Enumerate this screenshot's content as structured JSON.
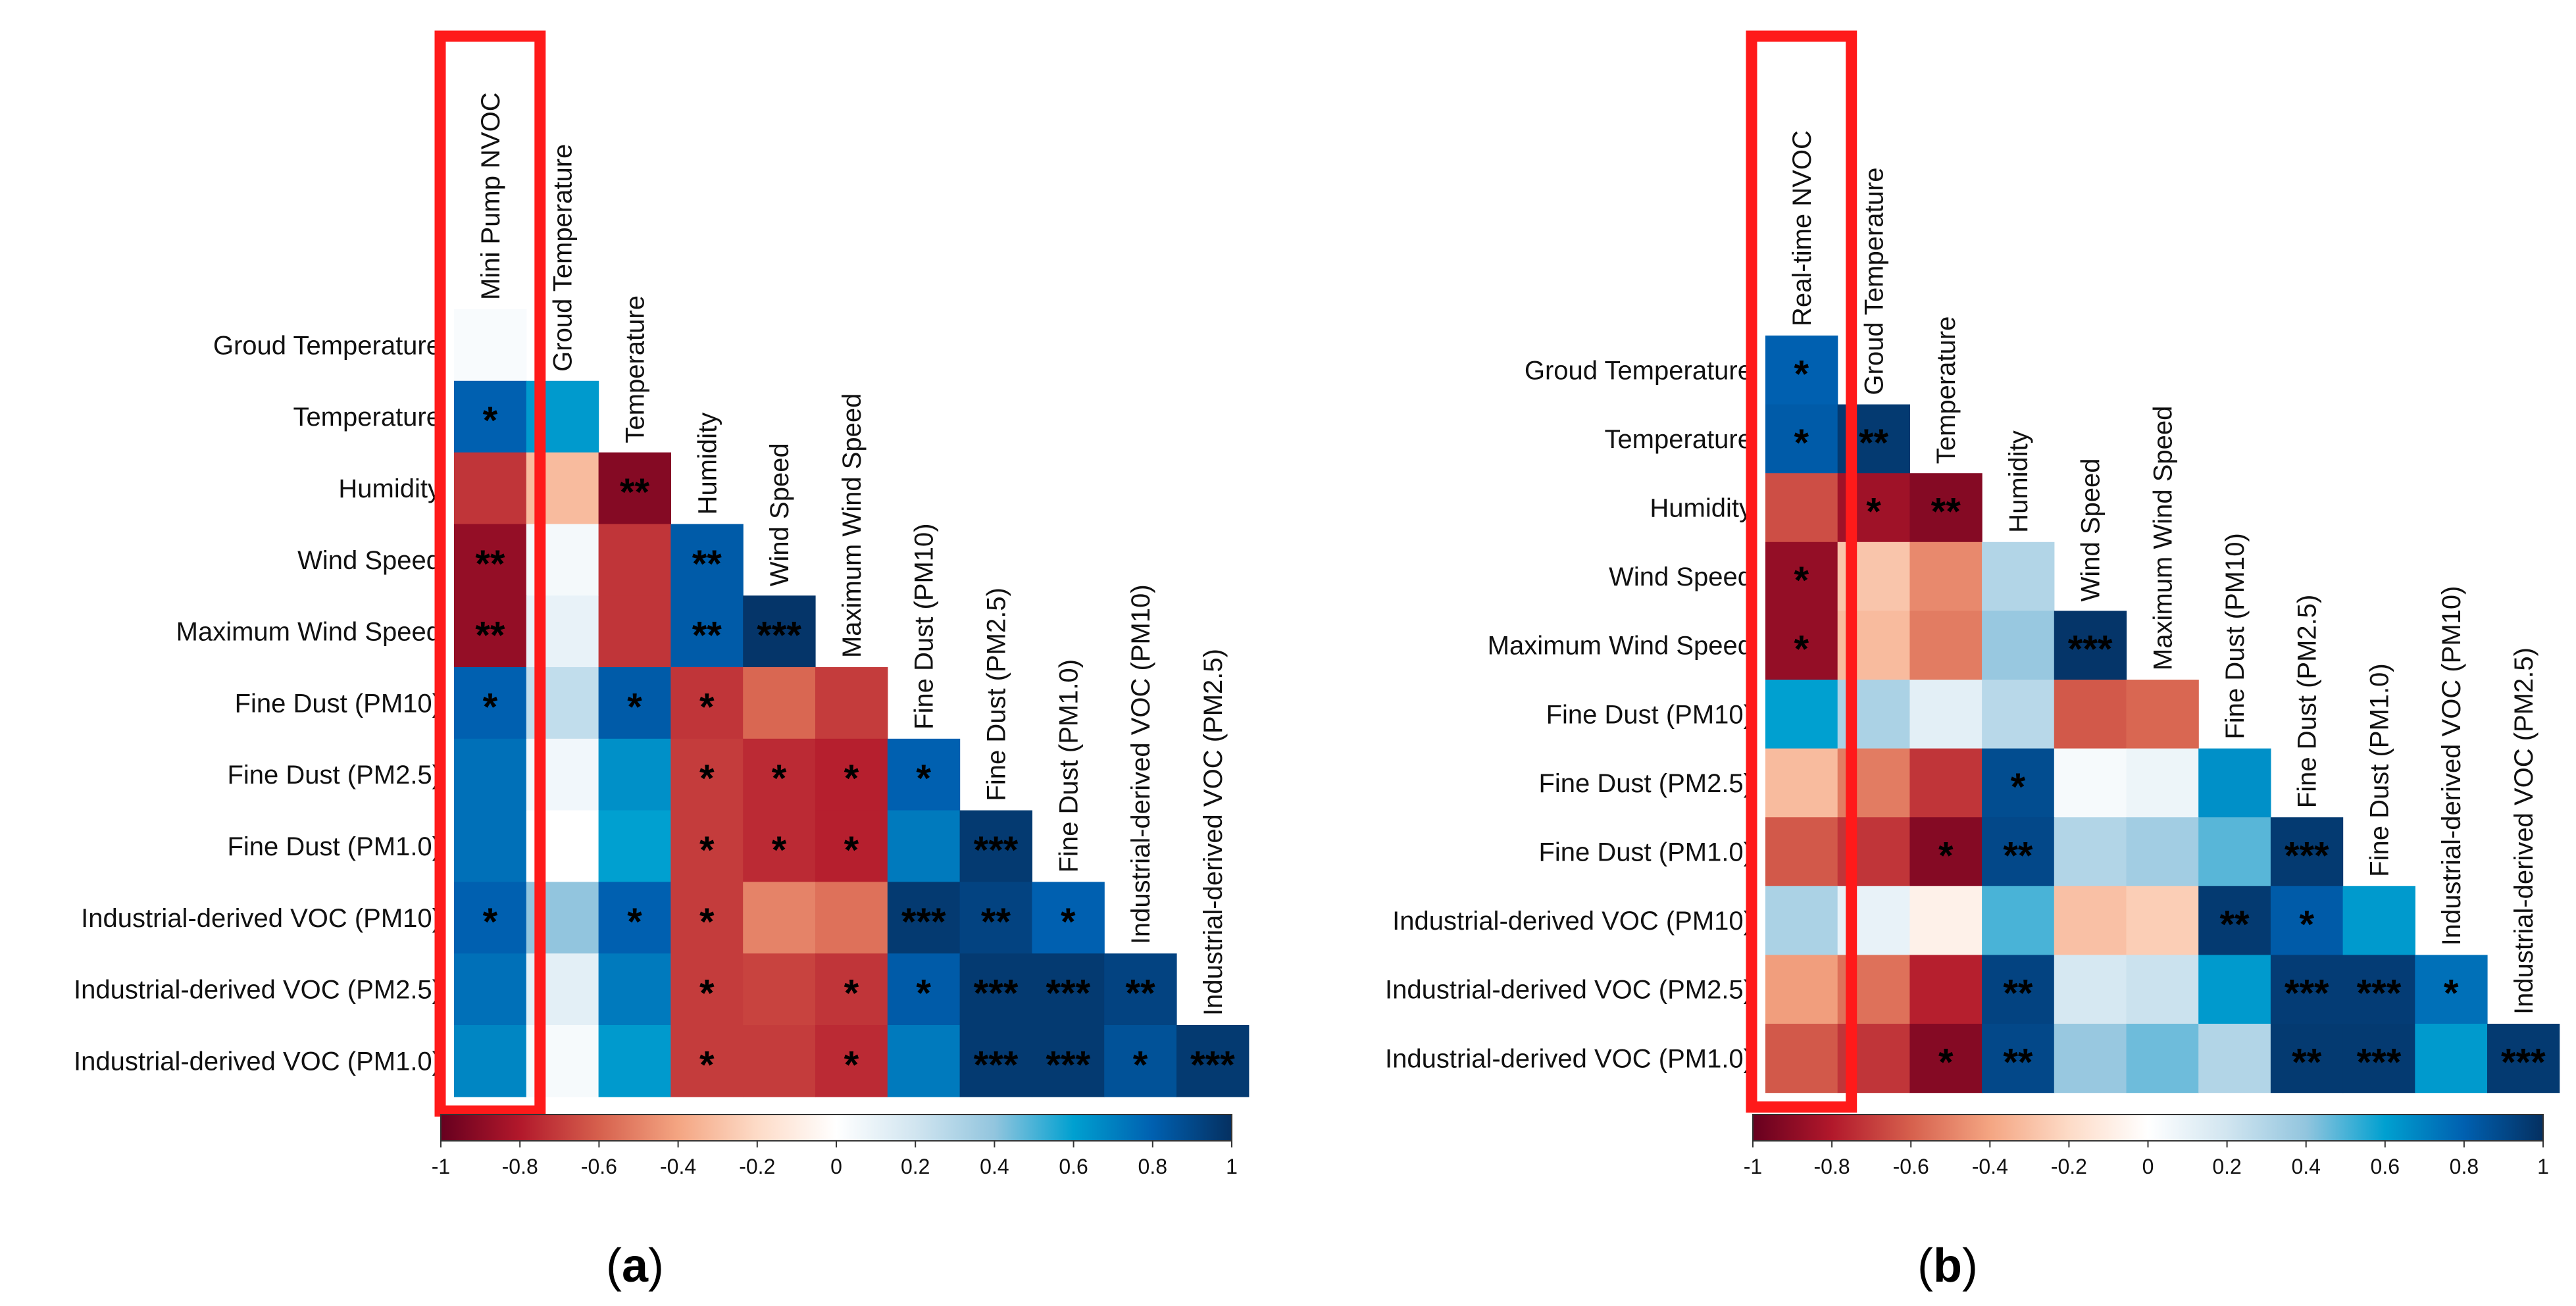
{
  "chart_data": [
    {
      "type": "heatmap",
      "panel_label": "a",
      "highlight_label": "Mini Pump NVOC",
      "row_labels": [
        "Groud Temperature",
        "Temperature",
        "Humidity",
        "Wind Speed",
        "Maximum Wind Speed",
        "Fine Dust (PM10)",
        "Fine Dust (PM2.5)",
        "Fine Dust (PM1.0)",
        "Industrial-derived VOC (PM10)",
        "Industrial-derived VOC (PM2.5)",
        "Industrial-derived VOC (PM1.0)"
      ],
      "col_labels": [
        "Mini Pump NVOC",
        "Groud Temperature",
        "Temperature",
        "Humidity",
        "Wind Speed",
        "Maximum Wind Speed",
        "Fine Dust (PM10)",
        "Fine Dust (PM2.5)",
        "Fine Dust (PM1.0)",
        "Industrial-derived VOC (PM10)",
        "Industrial-derived VOC (PM2.5)"
      ],
      "values": [
        [
          0.03
        ],
        [
          0.8,
          0.62
        ],
        [
          -0.72,
          -0.32,
          -0.92
        ],
        [
          -0.88,
          0.05,
          -0.72,
          0.82
        ],
        [
          -0.88,
          0.1,
          -0.72,
          0.82,
          0.98
        ],
        [
          0.8,
          0.25,
          0.82,
          -0.72,
          -0.58,
          -0.7
        ],
        [
          0.75,
          0.06,
          0.65,
          -0.7,
          -0.75,
          -0.78,
          0.8
        ],
        [
          0.75,
          0.0,
          0.6,
          -0.7,
          -0.75,
          -0.78,
          0.72,
          0.96
        ],
        [
          0.8,
          0.4,
          0.8,
          -0.7,
          -0.5,
          -0.55,
          0.96,
          0.92,
          0.8
        ],
        [
          0.75,
          0.12,
          0.72,
          -0.7,
          -0.68,
          -0.72,
          0.82,
          0.96,
          0.96,
          0.92
        ],
        [
          0.68,
          0.04,
          0.62,
          -0.7,
          -0.7,
          -0.75,
          0.72,
          0.96,
          0.96,
          0.86,
          0.96
        ]
      ],
      "significance": [
        [
          ""
        ],
        [
          "*",
          ""
        ],
        [
          "",
          "",
          "**"
        ],
        [
          "**",
          "",
          "",
          "**"
        ],
        [
          "**",
          "",
          "",
          "**",
          "***"
        ],
        [
          "*",
          "",
          "*",
          "*",
          "",
          ""
        ],
        [
          "",
          "",
          "",
          "*",
          "*",
          "*",
          "*"
        ],
        [
          "",
          "",
          "",
          "*",
          "*",
          "*",
          "",
          "***"
        ],
        [
          "*",
          "",
          "*",
          "*",
          "",
          "",
          "***",
          "**",
          "*"
        ],
        [
          "",
          "",
          "",
          "*",
          "",
          "*",
          "*",
          "***",
          "***",
          "**"
        ],
        [
          "",
          "",
          "",
          "*",
          "",
          "*",
          "",
          "***",
          "***",
          "*",
          "***"
        ]
      ],
      "color_scale": {
        "min": -1,
        "max": 1,
        "ticks": [
          "-1",
          "-0.8",
          "-0.6",
          "-0.4",
          "-0.2",
          "0",
          "0.2",
          "0.4",
          "0.6",
          "0.8",
          "1"
        ]
      }
    },
    {
      "type": "heatmap",
      "panel_label": "b",
      "highlight_label": "Real-time NVOC",
      "row_labels": [
        "Groud Temperature",
        "Temperature",
        "Humidity",
        "Wind Speed",
        "Maximum Wind Speed",
        "Fine Dust (PM10)",
        "Fine Dust (PM2.5)",
        "Fine Dust (PM1.0)",
        "Industrial-derived VOC (PM10)",
        "Industrial-derived VOC (PM2.5)",
        "Industrial-derived VOC (PM1.0)"
      ],
      "col_labels": [
        "Real-time NVOC",
        "Groud Temperature",
        "Temperature",
        "Humidity",
        "Wind Speed",
        "Maximum Wind Speed",
        "Fine Dust (PM10)",
        "Fine Dust (PM2.5)",
        "Fine Dust (PM1.0)",
        "Industrial-derived VOC (PM10)",
        "Industrial-derived VOC (PM2.5)"
      ],
      "values": [
        [
          0.8
        ],
        [
          0.82,
          0.96
        ],
        [
          -0.65,
          -0.85,
          -0.92
        ],
        [
          -0.88,
          -0.28,
          -0.48,
          0.3
        ],
        [
          -0.88,
          -0.32,
          -0.52,
          0.38,
          0.98
        ],
        [
          0.6,
          0.32,
          0.12,
          0.28,
          -0.62,
          -0.58
        ],
        [
          -0.32,
          -0.52,
          -0.72,
          0.88,
          0.04,
          0.08,
          0.65
        ],
        [
          -0.62,
          -0.72,
          -0.92,
          0.9,
          0.3,
          0.35,
          0.48,
          0.96
        ],
        [
          0.32,
          0.1,
          -0.08,
          0.5,
          -0.3,
          -0.25,
          0.96,
          0.82,
          0.62
        ],
        [
          -0.42,
          -0.55,
          -0.78,
          0.92,
          0.18,
          0.22,
          0.62,
          0.95,
          0.95,
          0.75
        ],
        [
          -0.62,
          -0.72,
          -0.92,
          0.9,
          0.38,
          0.45,
          0.3,
          0.96,
          0.96,
          0.62,
          0.96
        ]
      ],
      "significance": [
        [
          "*"
        ],
        [
          "*",
          "**"
        ],
        [
          "",
          "*",
          "**"
        ],
        [
          "*",
          "",
          "",
          ""
        ],
        [
          "*",
          "",
          "",
          "",
          "***"
        ],
        [
          "",
          "",
          "",
          "",
          "",
          ""
        ],
        [
          "",
          "",
          "",
          "*",
          "",
          "",
          ""
        ],
        [
          "",
          "",
          "*",
          "**",
          "",
          "",
          "",
          "***"
        ],
        [
          "",
          "",
          "",
          "",
          "",
          "",
          "**",
          "*",
          ""
        ],
        [
          "",
          "",
          "",
          "**",
          "",
          "",
          "",
          "***",
          "***",
          "*"
        ],
        [
          "",
          "",
          "*",
          "**",
          "",
          "",
          "",
          "**",
          "***",
          "",
          "***"
        ]
      ],
      "color_scale": {
        "min": -1,
        "max": 1,
        "ticks": [
          "-1",
          "-0.8",
          "-0.6",
          "-0.4",
          "-0.2",
          "0",
          "0.2",
          "0.4",
          "0.6",
          "0.8",
          "1"
        ]
      }
    }
  ]
}
